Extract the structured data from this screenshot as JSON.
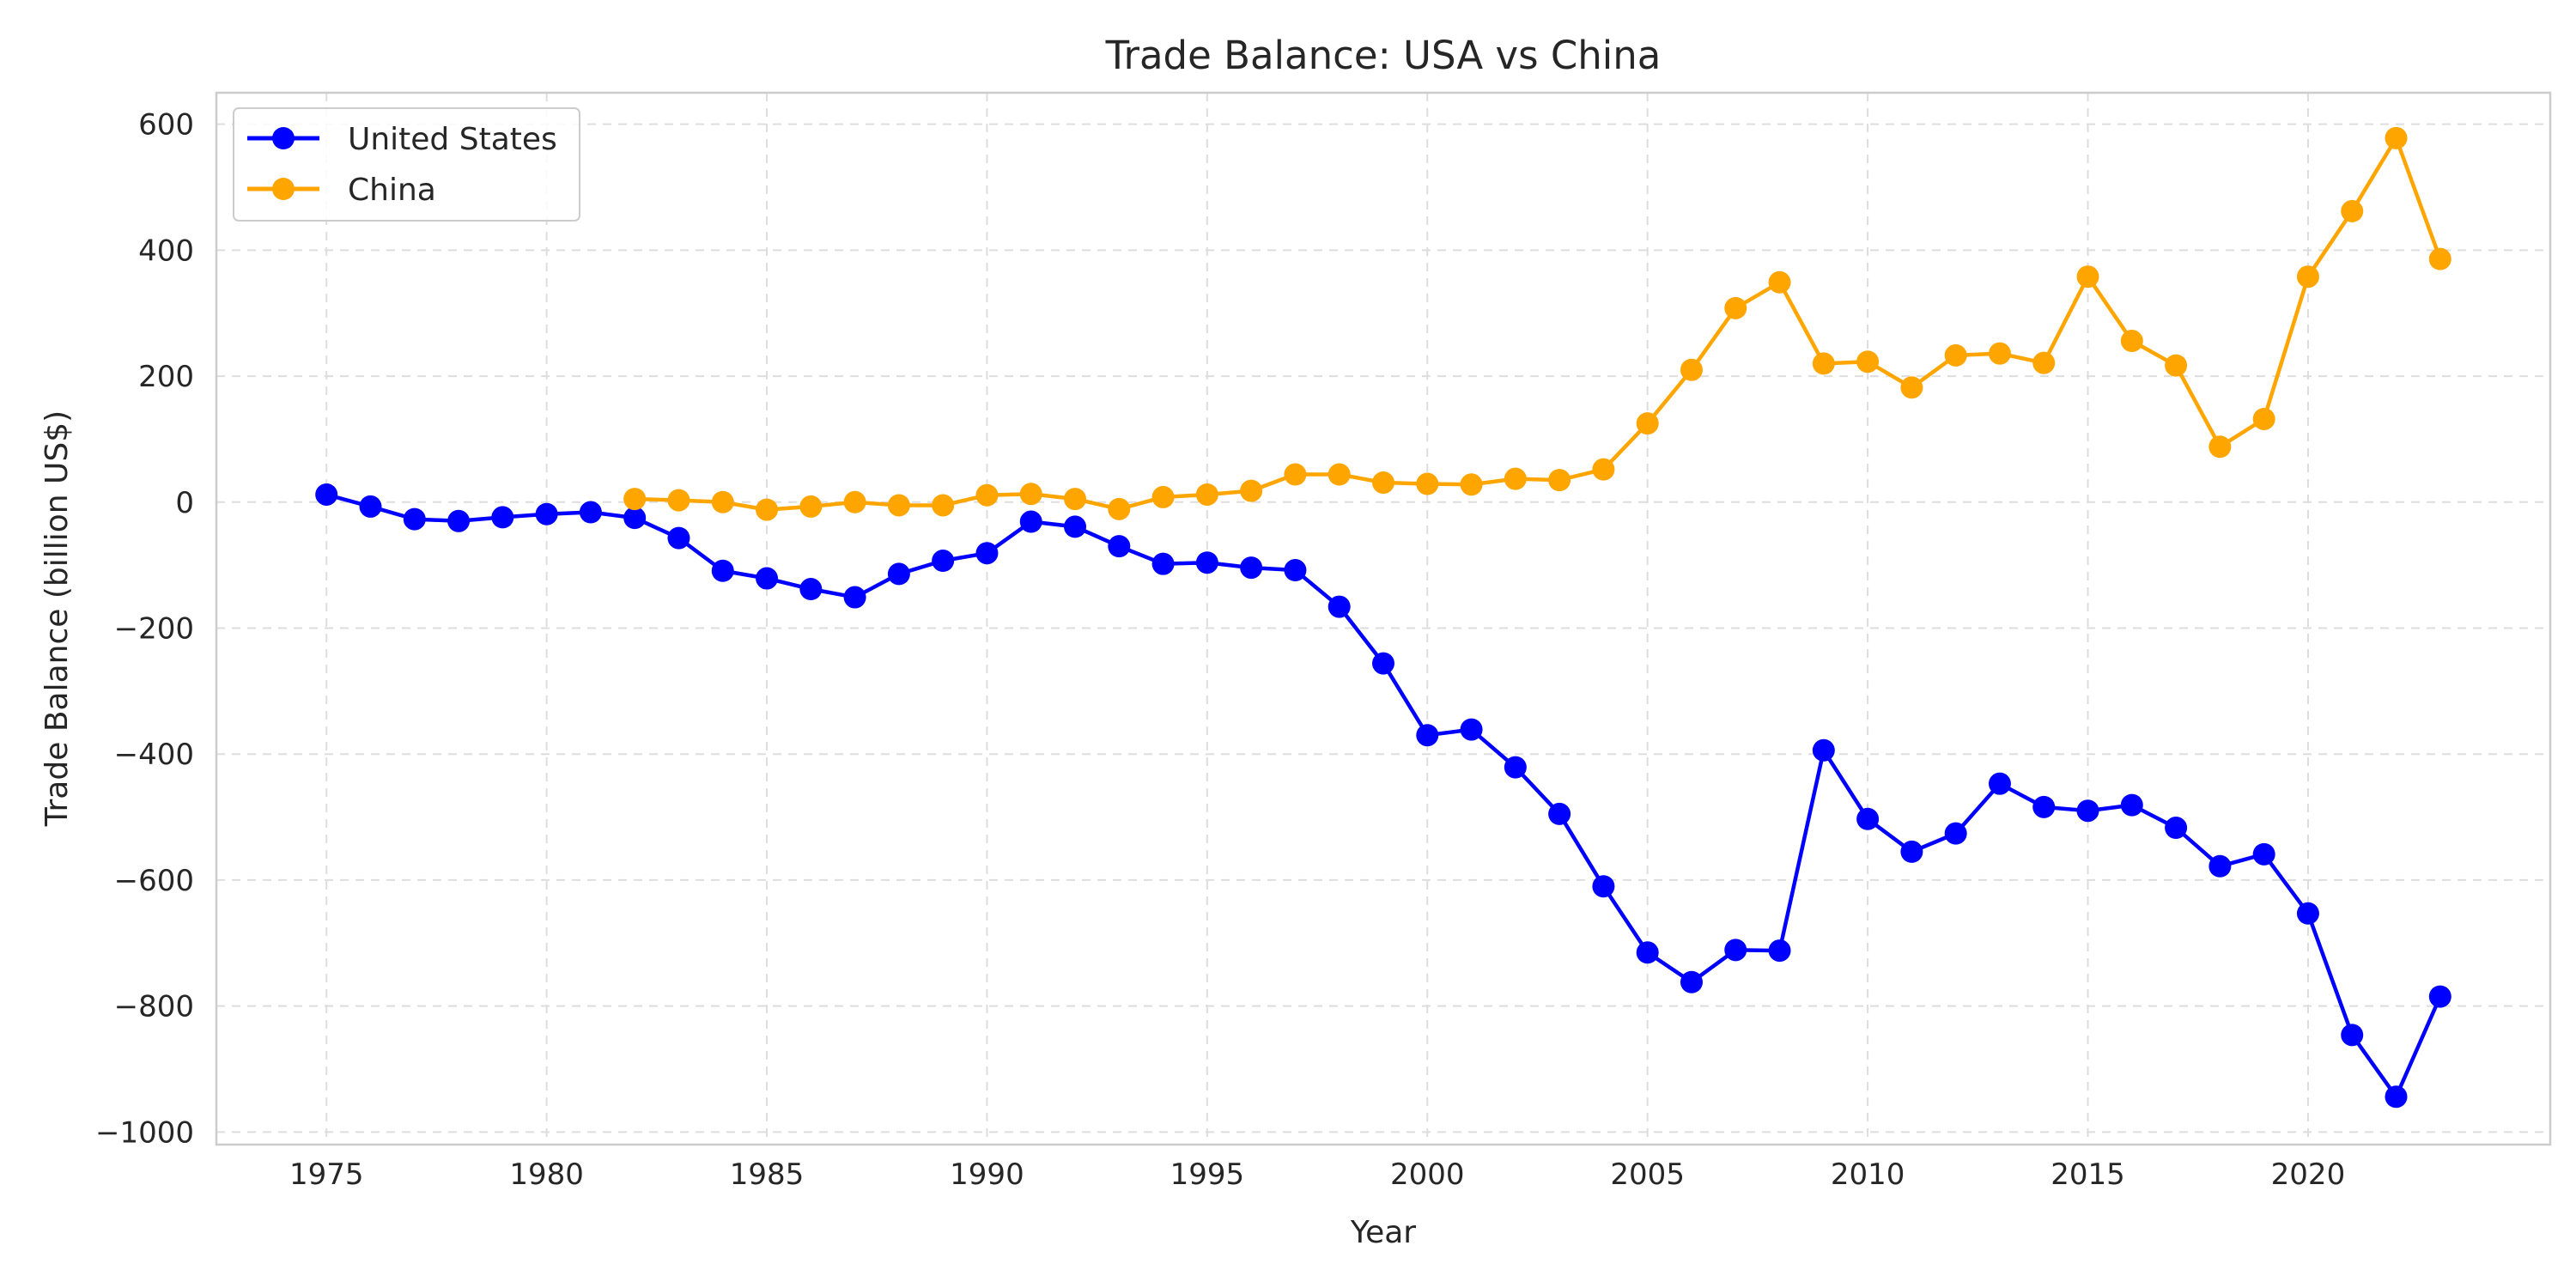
{
  "chart_data": {
    "type": "line",
    "title": "Trade Balance: USA vs China",
    "xlabel": "Year",
    "ylabel": "Trade Balance (billion US$)",
    "xlim": [
      1972.5,
      2025.5
    ],
    "ylim": [
      -1020,
      650
    ],
    "xticks": [
      1975,
      1980,
      1985,
      1990,
      1995,
      2000,
      2005,
      2010,
      2015,
      2020
    ],
    "yticks": [
      600,
      400,
      200,
      0,
      -200,
      -400,
      -600,
      -800,
      -1000
    ],
    "ytick_labels": [
      "600",
      "400",
      "200",
      "0",
      "−200",
      "−400",
      "−600",
      "−800",
      "−1000"
    ],
    "grid": true,
    "legend_position": "top-left",
    "series": [
      {
        "name": "United States",
        "color": "#0000ff",
        "x": [
          1975,
          1976,
          1977,
          1978,
          1979,
          1980,
          1981,
          1982,
          1983,
          1984,
          1985,
          1986,
          1987,
          1988,
          1989,
          1990,
          1991,
          1992,
          1993,
          1994,
          1995,
          1996,
          1997,
          1998,
          1999,
          2000,
          2001,
          2002,
          2003,
          2004,
          2005,
          2006,
          2007,
          2008,
          2009,
          2010,
          2011,
          2012,
          2013,
          2014,
          2015,
          2016,
          2017,
          2018,
          2019,
          2020,
          2021,
          2022,
          2023
        ],
        "y": [
          12,
          -7,
          -27,
          -30,
          -24,
          -19,
          -16,
          -25,
          -57,
          -109,
          -121,
          -138,
          -151,
          -114,
          -93,
          -81,
          -31,
          -39,
          -70,
          -98,
          -96,
          -104,
          -108,
          -166,
          -256,
          -370,
          -361,
          -421,
          -495,
          -610,
          -715,
          -762,
          -711,
          -712,
          -394,
          -503,
          -555,
          -526,
          -447,
          -484,
          -490,
          -481,
          -517,
          -578,
          -559,
          -653,
          -846,
          -944,
          -785
        ]
      },
      {
        "name": "China",
        "color": "#ffa500",
        "x": [
          1982,
          1983,
          1984,
          1985,
          1986,
          1987,
          1988,
          1989,
          1990,
          1991,
          1992,
          1993,
          1994,
          1995,
          1996,
          1997,
          1998,
          1999,
          2000,
          2001,
          2002,
          2003,
          2004,
          2005,
          2006,
          2007,
          2008,
          2009,
          2010,
          2011,
          2012,
          2013,
          2014,
          2015,
          2016,
          2017,
          2018,
          2019,
          2020,
          2021,
          2022,
          2023
        ],
        "y": [
          5,
          3,
          0,
          -12,
          -7,
          0,
          -5,
          -5,
          11,
          13,
          5,
          -11,
          8,
          12,
          18,
          44,
          44,
          31,
          29,
          28,
          37,
          35,
          52,
          125,
          210,
          308,
          349,
          220,
          223,
          182,
          233,
          236,
          221,
          358,
          256,
          217,
          88,
          132,
          358,
          462,
          578,
          386
        ]
      }
    ]
  }
}
